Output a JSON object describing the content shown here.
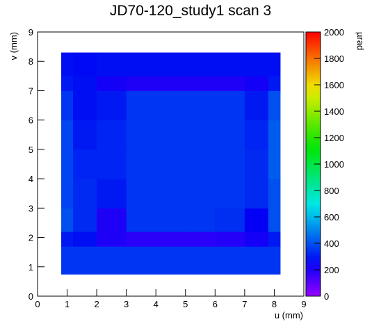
{
  "chart_data": {
    "type": "heatmap",
    "title": "JD70-120_study1 scan 3",
    "x_label": "u (mm)",
    "y_label": "v (mm)",
    "z_label": "µrad",
    "xlim": [
      0,
      9
    ],
    "ylim": [
      0,
      9
    ],
    "zlim": [
      0,
      2000
    ],
    "xticks": [
      0,
      1,
      2,
      3,
      4,
      5,
      6,
      7,
      8,
      9
    ],
    "yticks": [
      0,
      1,
      2,
      3,
      4,
      5,
      6,
      7,
      8,
      9
    ],
    "zticks": [
      0,
      200,
      400,
      600,
      800,
      1000,
      1200,
      1400,
      1600,
      1800,
      2000
    ],
    "xedges": [
      0.8,
      1.2,
      2.0,
      3.0,
      4.0,
      5.0,
      6.0,
      7.0,
      7.8,
      8.2
    ],
    "yedges": [
      0.75,
      1.7,
      2.2,
      3.0,
      4.0,
      5.0,
      6.0,
      7.0,
      7.5,
      8.3
    ],
    "z": [
      [
        350,
        350,
        350,
        350,
        350,
        350,
        350,
        350,
        350
      ],
      [
        300,
        280,
        200,
        180,
        180,
        180,
        190,
        220,
        300
      ],
      [
        400,
        330,
        200,
        350,
        350,
        350,
        340,
        250,
        400
      ],
      [
        380,
        330,
        300,
        350,
        350,
        350,
        350,
        330,
        400
      ],
      [
        380,
        320,
        320,
        350,
        350,
        350,
        350,
        330,
        420
      ],
      [
        380,
        300,
        320,
        350,
        350,
        350,
        350,
        320,
        420
      ],
      [
        350,
        280,
        300,
        350,
        350,
        350,
        350,
        300,
        400
      ],
      [
        300,
        280,
        220,
        200,
        200,
        200,
        200,
        220,
        300
      ],
      [
        280,
        270,
        280,
        280,
        280,
        280,
        280,
        280,
        280
      ]
    ]
  }
}
